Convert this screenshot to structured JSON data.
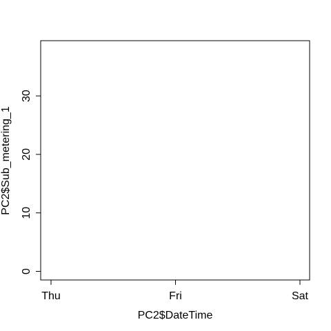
{
  "chart_data": {
    "type": "line",
    "title": "",
    "xlabel": "PC2$DateTime",
    "ylabel": "PC2$Sub_metering_1",
    "x_ticks": [
      "Thu",
      "Fri",
      "Sat"
    ],
    "y_ticks": [
      0,
      10,
      20,
      30
    ],
    "ylim": [
      0,
      38
    ],
    "grid": false,
    "series": []
  }
}
